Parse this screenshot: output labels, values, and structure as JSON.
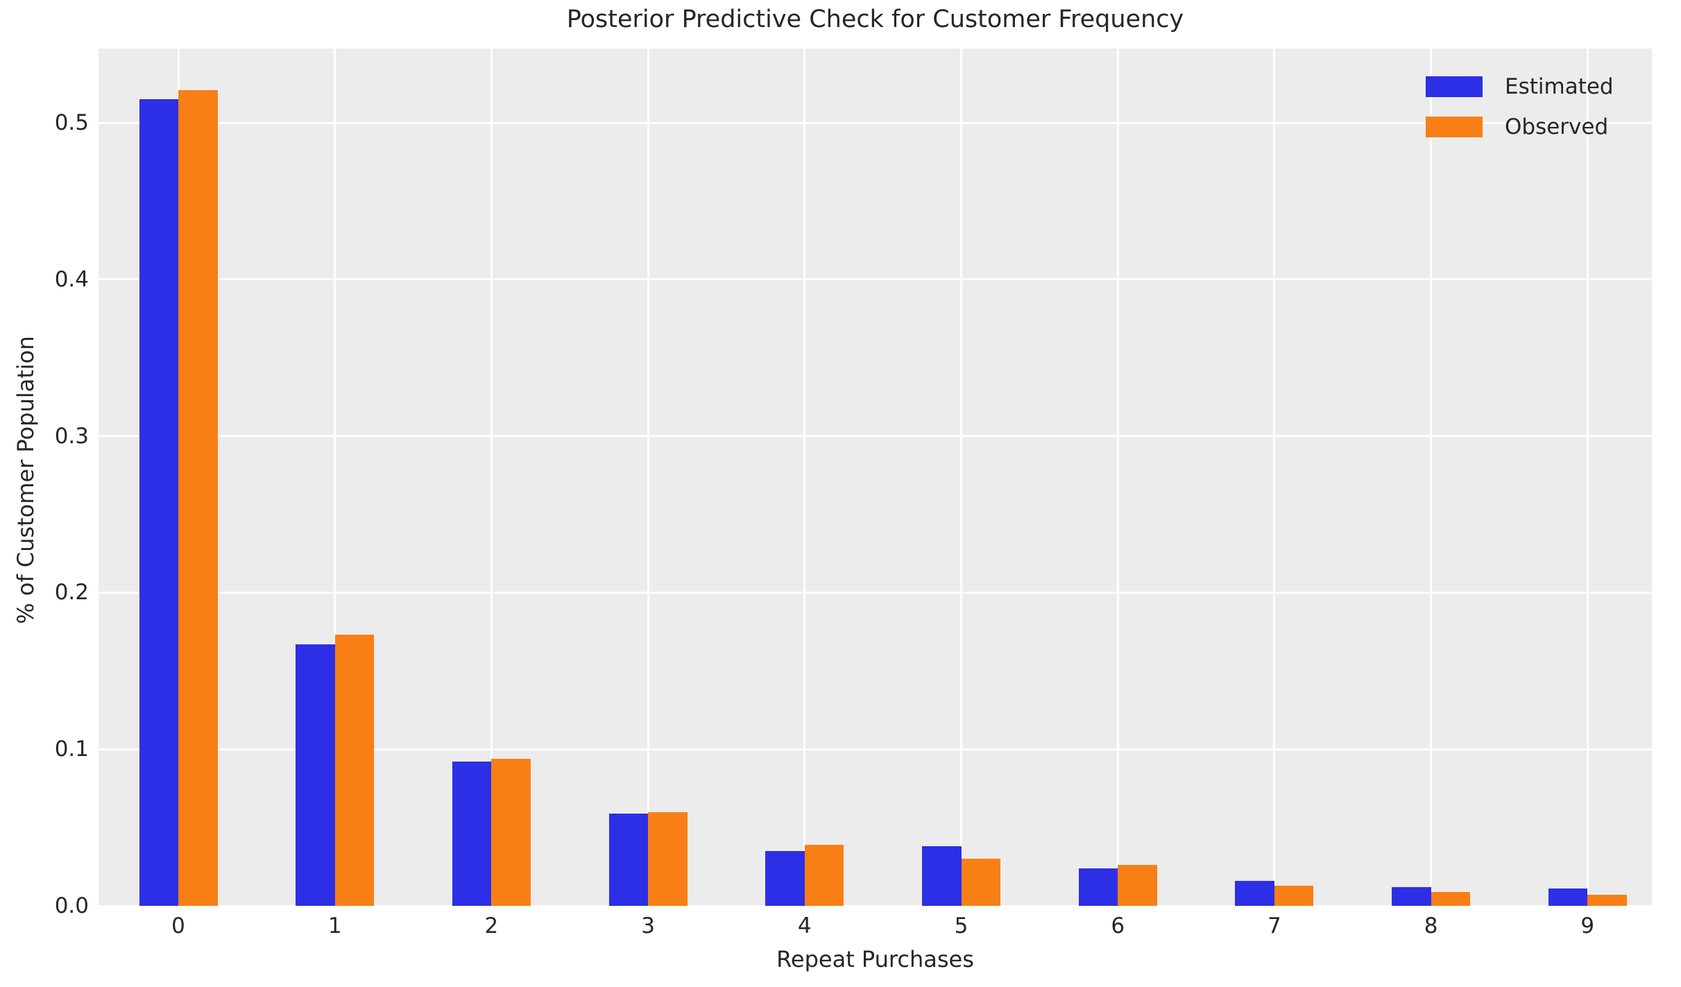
{
  "title": "Posterior Predictive Check for Customer Frequency",
  "chart_data": {
    "type": "bar",
    "title": "Posterior Predictive Check for Customer Frequency",
    "xlabel": "Repeat Purchases",
    "ylabel": "% of Customer Population",
    "categories": [
      "0",
      "1",
      "2",
      "3",
      "4",
      "5",
      "6",
      "7",
      "8",
      "9"
    ],
    "series": [
      {
        "name": "Estimated",
        "color": "#2c2fe6",
        "values": [
          0.515,
          0.167,
          0.092,
          0.059,
          0.035,
          0.038,
          0.024,
          0.016,
          0.012,
          0.011
        ]
      },
      {
        "name": "Observed",
        "color": "#f87f15",
        "values": [
          0.521,
          0.173,
          0.094,
          0.06,
          0.039,
          0.03,
          0.026,
          0.013,
          0.009,
          0.007
        ]
      }
    ],
    "ytick_labels": [
      "0.0",
      "0.1",
      "0.2",
      "0.3",
      "0.4",
      "0.5"
    ],
    "ylim": [
      0,
      0.5474
    ],
    "grid": true,
    "grid_color": "#ffffff",
    "plot_background": "#ececec",
    "text_color": "#262626",
    "legend_position": "upper right"
  }
}
